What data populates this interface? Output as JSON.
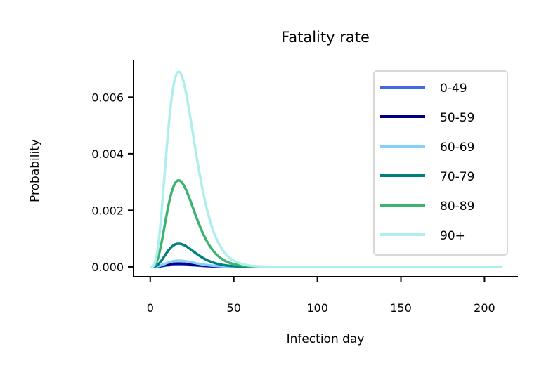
{
  "chart_data": {
    "type": "line",
    "title": "Fatality rate",
    "xlabel": "Infection day",
    "ylabel": "Probability",
    "xlim": [
      -10,
      220
    ],
    "ylim": [
      -0.00035,
      0.0073
    ],
    "xticks": [
      0,
      50,
      100,
      150,
      200
    ],
    "xtick_labels": [
      "0",
      "50",
      "100",
      "150",
      "200"
    ],
    "yticks": [
      0.0,
      0.002,
      0.004,
      0.006
    ],
    "ytick_labels": [
      "0.000",
      "0.002",
      "0.004",
      "0.006"
    ],
    "grid": false,
    "legend_position": "upper right",
    "curve_shape": {
      "peak_day": 17,
      "x_start": 0,
      "x_end": 210
    },
    "series": [
      {
        "name": "0-49",
        "color": "#4169e1",
        "peak": 8e-05
      },
      {
        "name": "50-59",
        "color": "#000080",
        "peak": 0.00012
      },
      {
        "name": "60-69",
        "color": "#87cefa",
        "peak": 0.00022
      },
      {
        "name": "70-79",
        "color": "#008080",
        "peak": 0.00082
      },
      {
        "name": "80-89",
        "color": "#3cb371",
        "peak": 0.00306
      },
      {
        "name": "90+",
        "color": "#afeeee",
        "peak": 0.0069
      }
    ]
  }
}
